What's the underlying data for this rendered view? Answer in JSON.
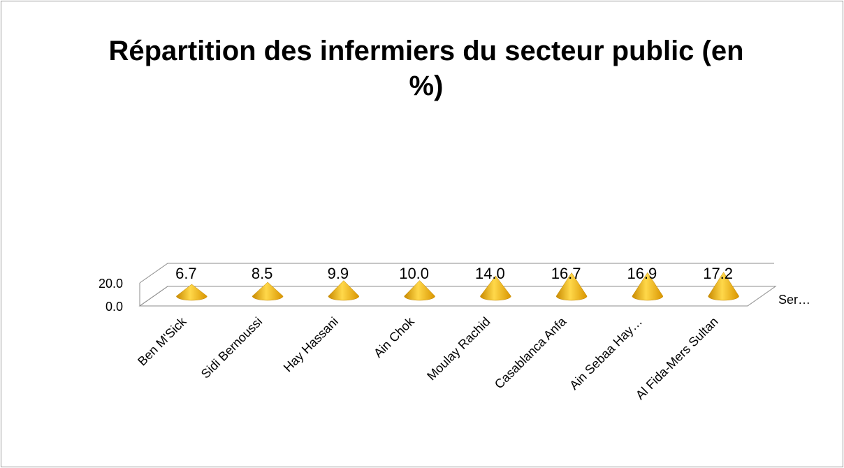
{
  "chart_data": {
    "type": "cone",
    "title": "Répartition des infermiers du secteur public (en %)",
    "categories": [
      "Ben M'Sick",
      "Sidi Bernoussi",
      "Hay Hassani",
      "Ain Chok",
      "Moulay Rachid",
      "Casablanca Anfa",
      "Ain Sebaa Hay…",
      "Al Fida-Mers Sultan"
    ],
    "series": [
      {
        "name": "Ser…",
        "color": "#f5b400",
        "values": [
          6.7,
          8.5,
          9.9,
          10.0,
          14.0,
          16.7,
          16.9,
          17.2
        ],
        "value_labels": [
          "6.7",
          "8.5",
          "9.9",
          "10.0",
          "14.0",
          "16.7",
          "16.9",
          "17.2"
        ]
      }
    ],
    "ylim": [
      0,
      20
    ],
    "yticks": [
      {
        "value": 0,
        "label": "0.0"
      },
      {
        "value": 20,
        "label": "20.0"
      }
    ]
  }
}
